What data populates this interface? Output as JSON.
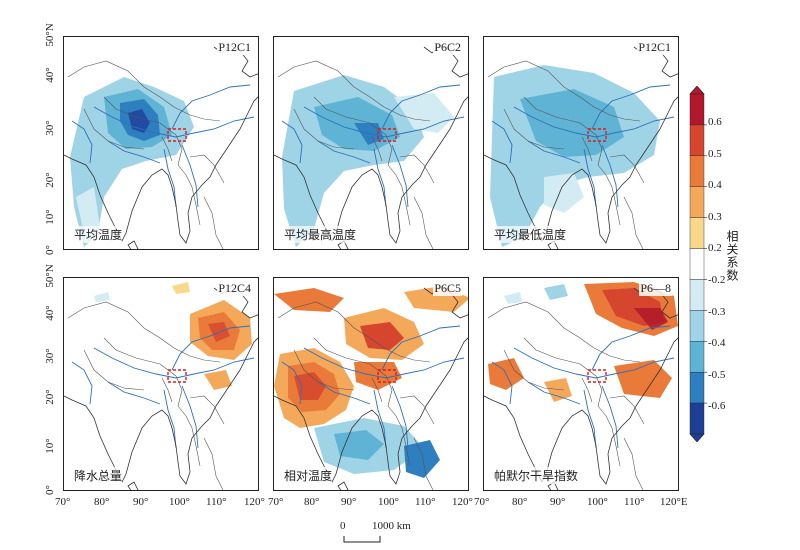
{
  "panels": [
    {
      "code": "P12C1",
      "name": "平均温度",
      "pattern": "avg_temp"
    },
    {
      "code": "P6C2",
      "name": "平均最高温度",
      "pattern": "max_temp"
    },
    {
      "code": "P12C1",
      "name": "平均最低温度",
      "pattern": "min_temp"
    },
    {
      "code": "P12C4",
      "name": "降水总量",
      "pattern": "precip"
    },
    {
      "code": "P6C5",
      "name": "相对温度",
      "pattern": "rel_humid"
    },
    {
      "code": "P6—8",
      "name": "帕默尔干旱指数",
      "pattern": "pdsi"
    }
  ],
  "lat_labels_top": [
    "50°N",
    "40°",
    "30°",
    "20°",
    "10°",
    "0°"
  ],
  "lat_labels_bottom": [
    "50°N",
    "40°",
    "30°",
    "20°",
    "10°",
    "0°"
  ],
  "lon_labels": [
    "70°",
    "80°",
    "90°",
    "100°",
    "110°",
    "120°",
    "70°",
    "80°",
    "90°",
    "100°",
    "110°",
    "120°",
    "70°",
    "80°",
    "90°",
    "100°",
    "110°",
    "120°E"
  ],
  "scale": {
    "start": "0",
    "end": "1000 km"
  },
  "colorbar": {
    "title": "相关系数",
    "ticks": [
      "0.6",
      "0.5",
      "0.4",
      "0.3",
      "0.2",
      "-0.2",
      "-0.3",
      "-0.4",
      "-0.5",
      "-0.6"
    ],
    "colors": [
      "#b2182b",
      "#d6452e",
      "#e97a3a",
      "#f4a95a",
      "#f8d98b",
      "#ffffff",
      "#d3ecf3",
      "#9fd3e6",
      "#5fb3d4",
      "#2e7fc0",
      "#1d3f98"
    ]
  }
}
